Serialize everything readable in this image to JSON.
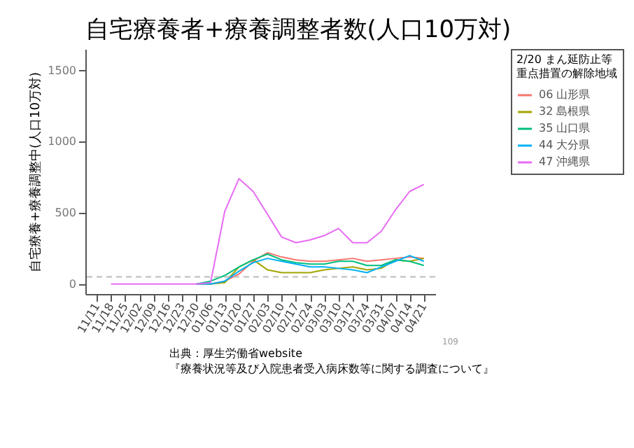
{
  "chart_data": {
    "type": "line",
    "title": "自宅療養者+療養調整者数(人口10万対)",
    "ylabel": "自宅療養+療養調整中(人口10万対)",
    "legend_title": "2/20 まん延防止等重点措置の解除地域",
    "categories": [
      "11/11",
      "11/18",
      "11/25",
      "12/02",
      "12/09",
      "12/16",
      "12/23",
      "12/30",
      "01/06",
      "01/13",
      "01/20",
      "01/27",
      "02/03",
      "02/10",
      "02/17",
      "02/24",
      "03/03",
      "03/10",
      "03/17",
      "03/24",
      "03/31",
      "04/07",
      "04/14",
      "04/21"
    ],
    "series": [
      {
        "name": "06 山形県",
        "color": "#f8766d",
        "values": [
          null,
          null,
          null,
          null,
          null,
          null,
          null,
          0,
          0,
          20,
          70,
          160,
          220,
          190,
          170,
          160,
          160,
          170,
          180,
          160,
          170,
          180,
          190,
          180
        ]
      },
      {
        "name": "32 島根県",
        "color": "#a3a500",
        "values": [
          null,
          null,
          null,
          null,
          null,
          null,
          null,
          0,
          0,
          10,
          120,
          170,
          100,
          80,
          80,
          80,
          100,
          110,
          120,
          100,
          110,
          170,
          160,
          180
        ]
      },
      {
        "name": "35 山口県",
        "color": "#00bf7d",
        "values": [
          null,
          null,
          null,
          null,
          null,
          null,
          null,
          0,
          20,
          60,
          120,
          170,
          210,
          170,
          150,
          140,
          140,
          160,
          160,
          130,
          130,
          170,
          160,
          130
        ]
      },
      {
        "name": "44 大分県",
        "color": "#00b0f6",
        "values": [
          null,
          null,
          null,
          null,
          null,
          null,
          null,
          0,
          0,
          20,
          90,
          150,
          180,
          160,
          140,
          120,
          120,
          110,
          100,
          80,
          120,
          160,
          200,
          160
        ]
      },
      {
        "name": "47 沖縄県",
        "color": "#e76bf3",
        "values": [
          null,
          0,
          0,
          0,
          0,
          0,
          0,
          0,
          10,
          510,
          740,
          650,
          490,
          330,
          290,
          310,
          340,
          390,
          290,
          290,
          370,
          520,
          650,
          700
        ]
      }
    ],
    "ylim": [
      -70,
      1650
    ],
    "yticks": [
      0,
      500,
      1000,
      1500
    ],
    "ref_lines": [
      {
        "axis": "y",
        "value": 50,
        "color": "#bbbbbb",
        "line_style": "dashed"
      }
    ],
    "grid": false,
    "legend": "right",
    "annotations": [
      "出典：厚生労働省website",
      "『療養状況等及び入院患者受入病床数等に関する調査について』",
      "109"
    ]
  }
}
